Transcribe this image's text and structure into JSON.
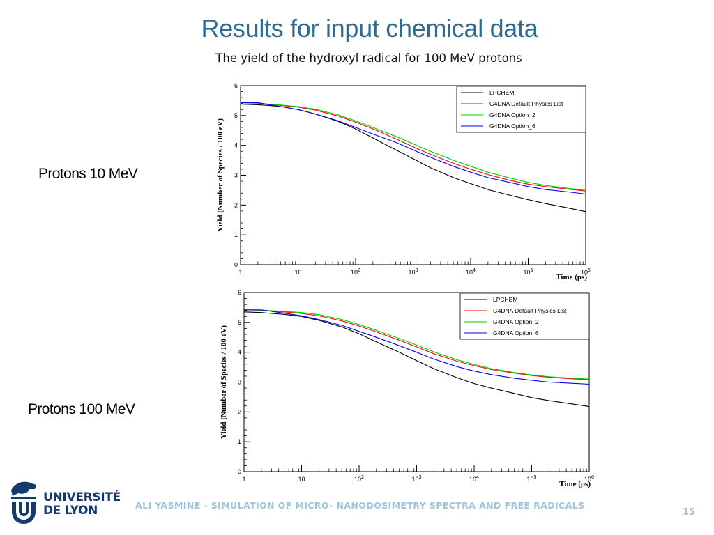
{
  "slide": {
    "title": "Results for input chemical data",
    "subtitle": "The yield of the hydroxyl radical for 100 MeV protons",
    "footer": "ALI YASMINE - SIMULATION OF MICRO- NANODOSIMETRY SPECTRA AND FREE RADICALS",
    "page_number": "15",
    "logo": {
      "line1": "UNIVERSITÉ",
      "line2": "DE LYON",
      "icon": "lion-icon",
      "color": "#163a6e"
    },
    "colors": {
      "title": "#2e6b93",
      "footer": "#9ec5dc"
    }
  },
  "rows": [
    {
      "label": "Protons 10 MeV"
    },
    {
      "label": "Protons 100 MeV"
    }
  ],
  "chart_data": [
    {
      "type": "line",
      "xlabel": "Time (ps)",
      "ylabel": "Yield (Number of Species / 100 eV)",
      "xscale": "log",
      "xlim": [
        1,
        1000000
      ],
      "ylim": [
        0,
        6
      ],
      "xticks": [
        1,
        10,
        100,
        1000,
        10000,
        100000,
        1000000
      ],
      "xticklabels": [
        {
          "base": "1",
          "exp": ""
        },
        {
          "base": "10",
          "exp": ""
        },
        {
          "base": "10",
          "exp": "2"
        },
        {
          "base": "10",
          "exp": "3"
        },
        {
          "base": "10",
          "exp": "4"
        },
        {
          "base": "10",
          "exp": "5"
        },
        {
          "base": "10",
          "exp": "6"
        }
      ],
      "yticks": [
        0,
        1,
        2,
        3,
        4,
        5,
        6
      ],
      "yticklabels": [
        "0",
        "1",
        "2",
        "3",
        "4",
        "5",
        "6"
      ],
      "legend_position": "top-right",
      "x": [
        1,
        2,
        3,
        5,
        10,
        20,
        50,
        100,
        200,
        500,
        1000,
        2000,
        5000,
        10000,
        20000,
        50000,
        100000,
        200000,
        500000,
        1000000
      ],
      "series": [
        {
          "name": "LPCHEM",
          "color": "#000000",
          "values": [
            5.38,
            5.36,
            5.34,
            5.3,
            5.2,
            5.05,
            4.8,
            4.55,
            4.25,
            3.85,
            3.55,
            3.25,
            2.92,
            2.72,
            2.52,
            2.32,
            2.18,
            2.05,
            1.9,
            1.78
          ]
        },
        {
          "name": "G4DNA Default Physics List",
          "color": "#ff0000",
          "values": [
            5.43,
            5.42,
            5.38,
            5.34,
            5.28,
            5.18,
            4.98,
            4.78,
            4.55,
            4.22,
            3.95,
            3.7,
            3.4,
            3.2,
            3.02,
            2.82,
            2.7,
            2.62,
            2.53,
            2.47
          ]
        },
        {
          "name": "G4DNA Option_2",
          "color": "#00cc00",
          "values": [
            5.42,
            5.41,
            5.38,
            5.35,
            5.3,
            5.21,
            5.02,
            4.82,
            4.6,
            4.3,
            4.05,
            3.8,
            3.5,
            3.3,
            3.1,
            2.9,
            2.76,
            2.66,
            2.56,
            2.49
          ]
        },
        {
          "name": "G4DNA Option_6",
          "color": "#0000ff",
          "values": [
            5.43,
            5.43,
            5.37,
            5.3,
            5.2,
            5.05,
            4.82,
            4.6,
            4.38,
            4.1,
            3.85,
            3.6,
            3.3,
            3.1,
            2.92,
            2.75,
            2.62,
            2.52,
            2.44,
            2.37
          ]
        }
      ]
    },
    {
      "type": "line",
      "xlabel": "Time (ps)",
      "ylabel": "Yield (Number of Species / 100 eV)",
      "xscale": "log",
      "xlim": [
        1,
        1000000
      ],
      "ylim": [
        0,
        6
      ],
      "xticks": [
        1,
        10,
        100,
        1000,
        10000,
        100000,
        1000000
      ],
      "xticklabels": [
        {
          "base": "1",
          "exp": ""
        },
        {
          "base": "10",
          "exp": ""
        },
        {
          "base": "10",
          "exp": "2"
        },
        {
          "base": "10",
          "exp": "3"
        },
        {
          "base": "10",
          "exp": "4"
        },
        {
          "base": "10",
          "exp": "5"
        },
        {
          "base": "10",
          "exp": "6"
        }
      ],
      "yticks": [
        0,
        1,
        2,
        3,
        4,
        5,
        6
      ],
      "yticklabels": [
        "0",
        "1",
        "2",
        "3",
        "4",
        "5",
        "6"
      ],
      "legend_position": "top-right",
      "x": [
        1,
        2,
        3,
        5,
        10,
        20,
        50,
        100,
        200,
        500,
        1000,
        2000,
        5000,
        10000,
        20000,
        50000,
        100000,
        200000,
        500000,
        1000000
      ],
      "series": [
        {
          "name": "LPCHEM",
          "color": "#000000",
          "values": [
            5.35,
            5.33,
            5.3,
            5.27,
            5.2,
            5.07,
            4.85,
            4.62,
            4.35,
            4.0,
            3.72,
            3.45,
            3.15,
            2.95,
            2.8,
            2.62,
            2.48,
            2.38,
            2.27,
            2.18
          ]
        },
        {
          "name": "G4DNA Default Physics List",
          "color": "#ff0000",
          "values": [
            5.42,
            5.41,
            5.38,
            5.35,
            5.3,
            5.22,
            5.05,
            4.88,
            4.68,
            4.4,
            4.18,
            3.95,
            3.7,
            3.55,
            3.42,
            3.3,
            3.22,
            3.16,
            3.11,
            3.08
          ]
        },
        {
          "name": "G4DNA Option_2",
          "color": "#00cc00",
          "values": [
            5.42,
            5.41,
            5.39,
            5.37,
            5.33,
            5.26,
            5.1,
            4.93,
            4.73,
            4.46,
            4.24,
            4.01,
            3.75,
            3.59,
            3.45,
            3.32,
            3.24,
            3.18,
            3.13,
            3.1
          ]
        },
        {
          "name": "G4DNA Option_6",
          "color": "#0000ff",
          "values": [
            5.42,
            5.42,
            5.37,
            5.31,
            5.22,
            5.1,
            4.9,
            4.7,
            4.5,
            4.22,
            4.0,
            3.77,
            3.52,
            3.37,
            3.25,
            3.13,
            3.06,
            3.0,
            2.96,
            2.93
          ]
        }
      ]
    }
  ]
}
